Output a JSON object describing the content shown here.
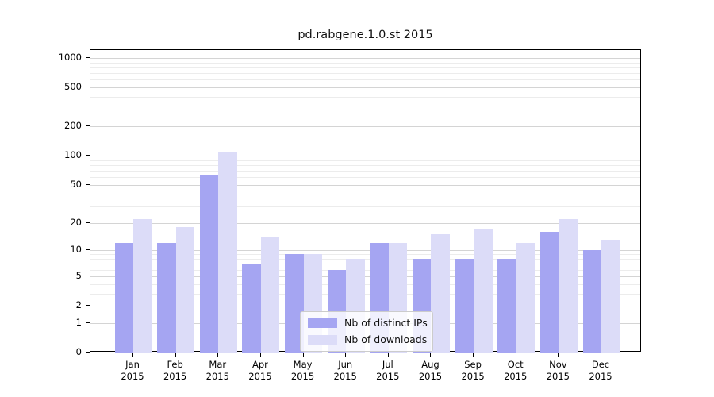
{
  "chart_data": {
    "type": "bar",
    "title": "pd.rabgene.1.0.st 2015",
    "categories": [
      "Jan",
      "Feb",
      "Mar",
      "Apr",
      "May",
      "Jun",
      "Jul",
      "Aug",
      "Sep",
      "Oct",
      "Nov",
      "Dec"
    ],
    "year": "2015",
    "series": [
      {
        "name": "Nb of distinct IPs",
        "color": "#a5a5f2",
        "values": [
          12,
          12,
          64,
          7,
          9,
          6,
          12,
          8,
          8,
          8,
          16,
          10
        ]
      },
      {
        "name": "Nb of downloads",
        "color": "#dcdcf8",
        "values": [
          22,
          18,
          110,
          14,
          9,
          8,
          12,
          15,
          17,
          12,
          22,
          13
        ]
      }
    ],
    "yscale": "log1p",
    "ylabel": "",
    "xlabel": "",
    "y_ticks": [
      0,
      1,
      2,
      5,
      10,
      20,
      50,
      100,
      200,
      500,
      1000
    ],
    "y_minor_gridlines": [
      3,
      4,
      6,
      7,
      8,
      9,
      30,
      40,
      60,
      70,
      80,
      90,
      300,
      400,
      600,
      700,
      800,
      900
    ],
    "ylim": [
      0,
      1000
    ],
    "grid": "horizontal",
    "legend_position": "inside-bottom-center",
    "colors": {
      "major_grid": "#d4d4d4",
      "minor_grid": "#ececec",
      "axis": "#000000",
      "background": "#ffffff"
    }
  },
  "legend": {
    "item1": "Nb of distinct IPs",
    "item2": "Nb of downloads"
  }
}
